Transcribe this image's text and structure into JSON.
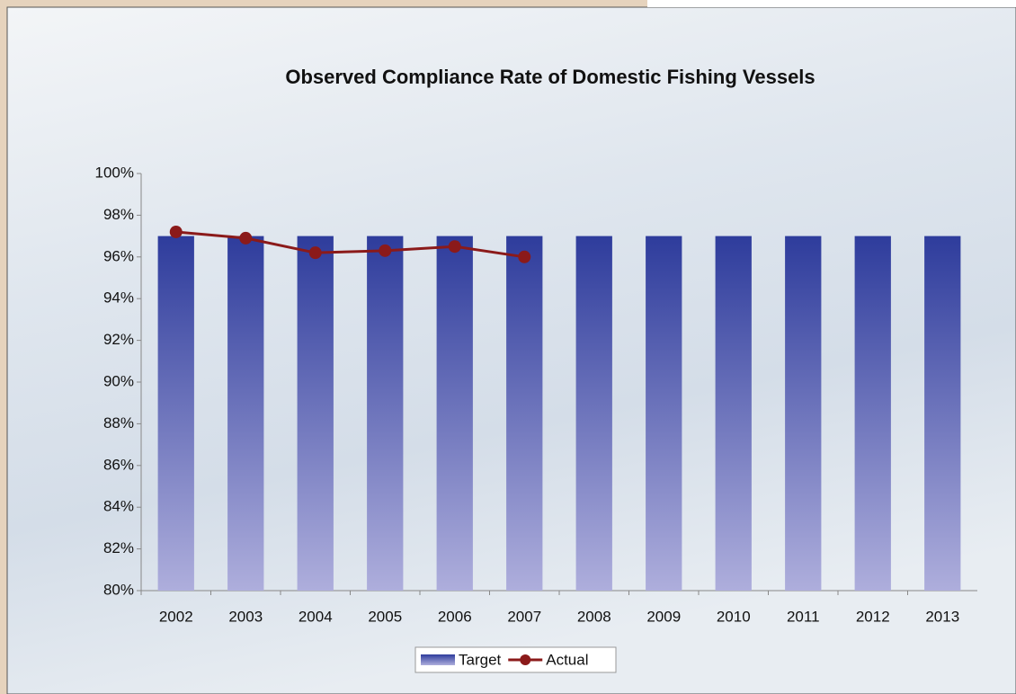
{
  "chart_data": {
    "type": "bar",
    "title": "Observed Compliance Rate of Domestic Fishing Vessels",
    "categories": [
      "2002",
      "2003",
      "2004",
      "2005",
      "2006",
      "2007",
      "2008",
      "2009",
      "2010",
      "2011",
      "2012",
      "2013"
    ],
    "series": [
      {
        "name": "Target",
        "type": "bar",
        "color": "#2f3f9e",
        "values": [
          97,
          97,
          97,
          97,
          97,
          97,
          97,
          97,
          97,
          97,
          97,
          97
        ]
      },
      {
        "name": "Actual",
        "type": "line",
        "color": "#8b1a1a",
        "values": [
          97.2,
          96.9,
          96.2,
          96.3,
          96.5,
          96.0,
          null,
          null,
          null,
          null,
          null,
          null
        ]
      }
    ],
    "ylim": [
      80,
      100
    ],
    "yticks": [
      {
        "value": 80,
        "label": "80%"
      },
      {
        "value": 82,
        "label": "82%"
      },
      {
        "value": 84,
        "label": "84%"
      },
      {
        "value": 86,
        "label": "86%"
      },
      {
        "value": 88,
        "label": "88%"
      },
      {
        "value": 90,
        "label": "90%"
      },
      {
        "value": 92,
        "label": "92%"
      },
      {
        "value": 94,
        "label": "94%"
      },
      {
        "value": 96,
        "label": "96%"
      },
      {
        "value": 98,
        "label": "98%"
      },
      {
        "value": 100,
        "label": "100%"
      }
    ],
    "legend": "bottom"
  }
}
